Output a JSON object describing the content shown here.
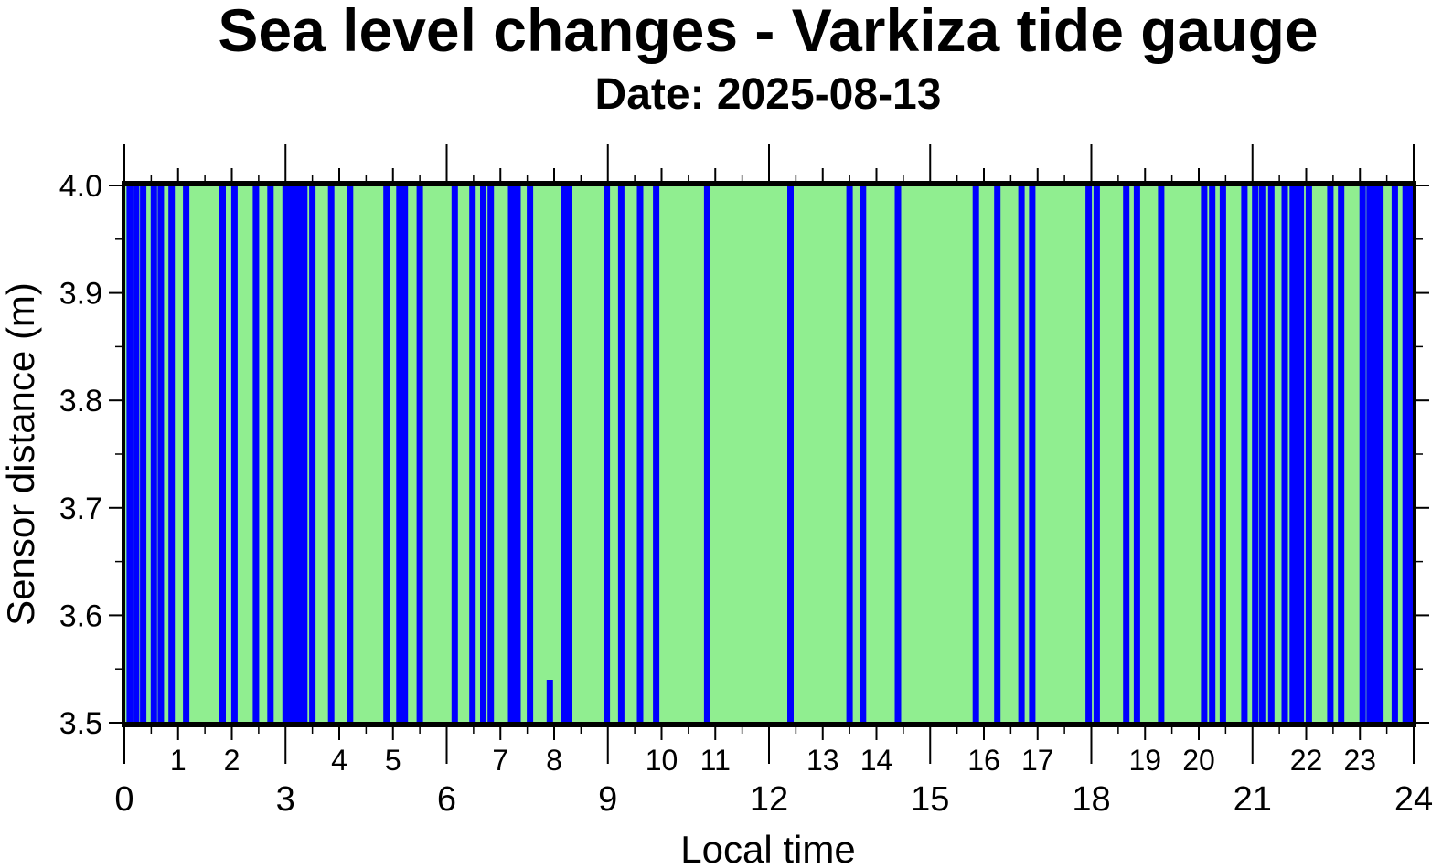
{
  "chart_data": {
    "type": "bar",
    "title": "Sea level changes - Varkiza tide gauge",
    "subtitle": "Date: 2025-08-13",
    "xlabel": "Local time",
    "ylabel": "Sensor distance (m)",
    "xlim": [
      0,
      24
    ],
    "ylim": [
      3.5,
      4.0
    ],
    "x_major_ticks": [
      "0",
      "3",
      "6",
      "9",
      "12",
      "15",
      "18",
      "21",
      "24"
    ],
    "x_minor_ticks": [
      "1",
      "2",
      "4",
      "5",
      "7",
      "8",
      "10",
      "11",
      "13",
      "14",
      "16",
      "17",
      "19",
      "20",
      "22",
      "23"
    ],
    "y_ticks": [
      "3.5",
      "3.6",
      "3.7",
      "3.8",
      "3.9",
      "4.0"
    ],
    "background_color": "#90ee90",
    "series": [
      {
        "color": "#0000ff",
        "points": [
          {
            "x": 0.1,
            "y": 4.0
          },
          {
            "x": 0.22,
            "y": 4.0
          },
          {
            "x": 0.35,
            "y": 4.0
          },
          {
            "x": 0.55,
            "y": 4.0
          },
          {
            "x": 0.68,
            "y": 4.0
          },
          {
            "x": 0.88,
            "y": 4.0
          },
          {
            "x": 1.15,
            "y": 4.0
          },
          {
            "x": 1.83,
            "y": 4.0
          },
          {
            "x": 2.05,
            "y": 4.0
          },
          {
            "x": 2.45,
            "y": 4.0
          },
          {
            "x": 2.72,
            "y": 4.0
          },
          {
            "x": 3.0,
            "y": 4.0
          },
          {
            "x": 3.05,
            "y": 4.0
          },
          {
            "x": 3.1,
            "y": 4.0
          },
          {
            "x": 3.15,
            "y": 4.0
          },
          {
            "x": 3.2,
            "y": 4.0
          },
          {
            "x": 3.25,
            "y": 4.0
          },
          {
            "x": 3.3,
            "y": 4.0
          },
          {
            "x": 3.35,
            "y": 4.0
          },
          {
            "x": 3.5,
            "y": 4.0
          },
          {
            "x": 3.85,
            "y": 4.0
          },
          {
            "x": 4.2,
            "y": 4.0
          },
          {
            "x": 4.88,
            "y": 4.0
          },
          {
            "x": 5.12,
            "y": 4.0
          },
          {
            "x": 5.22,
            "y": 4.0
          },
          {
            "x": 5.5,
            "y": 4.0
          },
          {
            "x": 6.15,
            "y": 4.0
          },
          {
            "x": 6.48,
            "y": 4.0
          },
          {
            "x": 6.68,
            "y": 4.0
          },
          {
            "x": 6.82,
            "y": 4.0
          },
          {
            "x": 7.2,
            "y": 4.0
          },
          {
            "x": 7.32,
            "y": 4.0
          },
          {
            "x": 7.55,
            "y": 4.0
          },
          {
            "x": 7.92,
            "y": 3.54
          },
          {
            "x": 8.18,
            "y": 4.0
          },
          {
            "x": 8.28,
            "y": 4.0
          },
          {
            "x": 8.98,
            "y": 4.0
          },
          {
            "x": 9.25,
            "y": 4.0
          },
          {
            "x": 9.6,
            "y": 4.0
          },
          {
            "x": 9.9,
            "y": 4.0
          },
          {
            "x": 10.85,
            "y": 4.0
          },
          {
            "x": 12.4,
            "y": 4.0
          },
          {
            "x": 13.5,
            "y": 4.0
          },
          {
            "x": 13.75,
            "y": 4.0
          },
          {
            "x": 14.4,
            "y": 4.0
          },
          {
            "x": 15.85,
            "y": 4.0
          },
          {
            "x": 16.25,
            "y": 4.0
          },
          {
            "x": 16.7,
            "y": 4.0
          },
          {
            "x": 16.9,
            "y": 4.0
          },
          {
            "x": 17.95,
            "y": 4.0
          },
          {
            "x": 18.1,
            "y": 4.0
          },
          {
            "x": 18.65,
            "y": 4.0
          },
          {
            "x": 18.85,
            "y": 4.0
          },
          {
            "x": 19.3,
            "y": 4.0
          },
          {
            "x": 20.1,
            "y": 4.0
          },
          {
            "x": 20.25,
            "y": 4.0
          },
          {
            "x": 20.45,
            "y": 4.0
          },
          {
            "x": 20.85,
            "y": 4.0
          },
          {
            "x": 21.05,
            "y": 4.0
          },
          {
            "x": 21.18,
            "y": 4.0
          },
          {
            "x": 21.35,
            "y": 4.0
          },
          {
            "x": 21.6,
            "y": 4.0
          },
          {
            "x": 21.75,
            "y": 4.0
          },
          {
            "x": 21.82,
            "y": 4.0
          },
          {
            "x": 21.9,
            "y": 4.0
          },
          {
            "x": 22.05,
            "y": 4.0
          },
          {
            "x": 22.45,
            "y": 4.0
          },
          {
            "x": 22.65,
            "y": 4.0
          },
          {
            "x": 23.05,
            "y": 4.0
          },
          {
            "x": 23.18,
            "y": 4.0
          },
          {
            "x": 23.28,
            "y": 4.0
          },
          {
            "x": 23.38,
            "y": 4.0
          },
          {
            "x": 23.65,
            "y": 4.0
          },
          {
            "x": 23.85,
            "y": 4.0
          },
          {
            "x": 23.95,
            "y": 4.0
          }
        ]
      }
    ]
  }
}
